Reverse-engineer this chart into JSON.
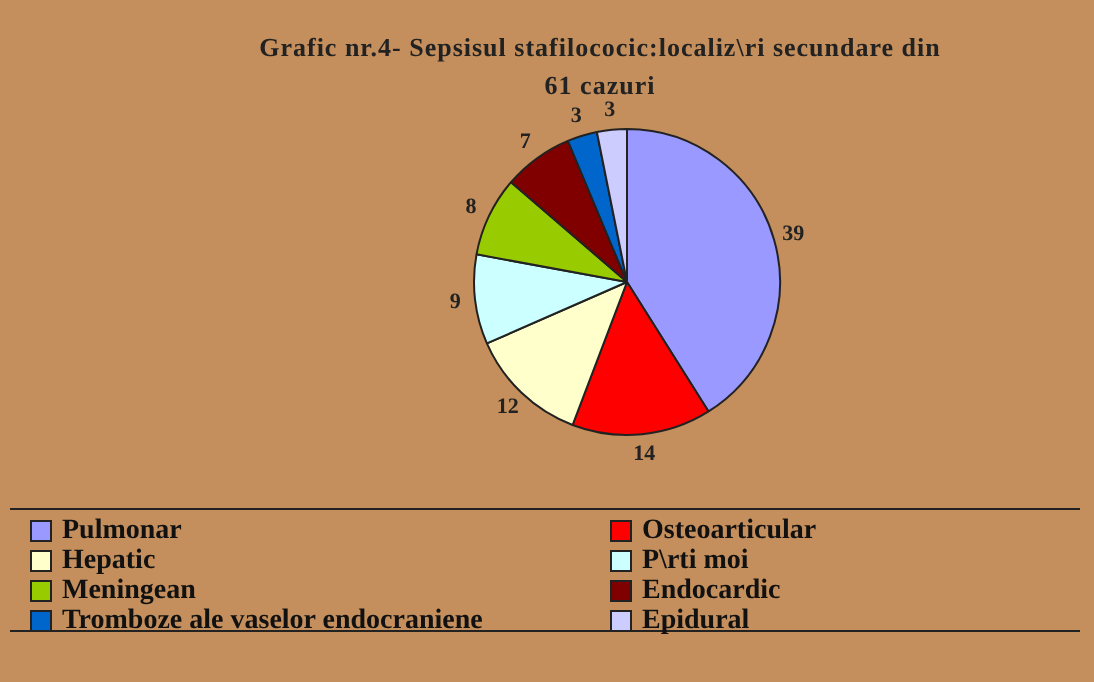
{
  "chart_data": {
    "type": "pie",
    "title": "Grafic nr.4- Sepsisul stafilococic:localiz\\ri secundare din 61 cazuri",
    "categories": [
      "Pulmonar",
      "Osteoarticular",
      "Hepatic",
      "P\\rti moi",
      "Meningean",
      "Endocardic",
      "Tromboze ale vaselor endocraniene",
      "Epidural"
    ],
    "values": [
      39,
      14,
      12,
      9,
      8,
      7,
      3,
      3
    ],
    "colors": [
      "#9999ff",
      "#ff0000",
      "#ffffcc",
      "#ccffff",
      "#99cc00",
      "#800000",
      "#0066cc",
      "#ccccff"
    ],
    "data_labels": true,
    "legend": "bottom"
  }
}
